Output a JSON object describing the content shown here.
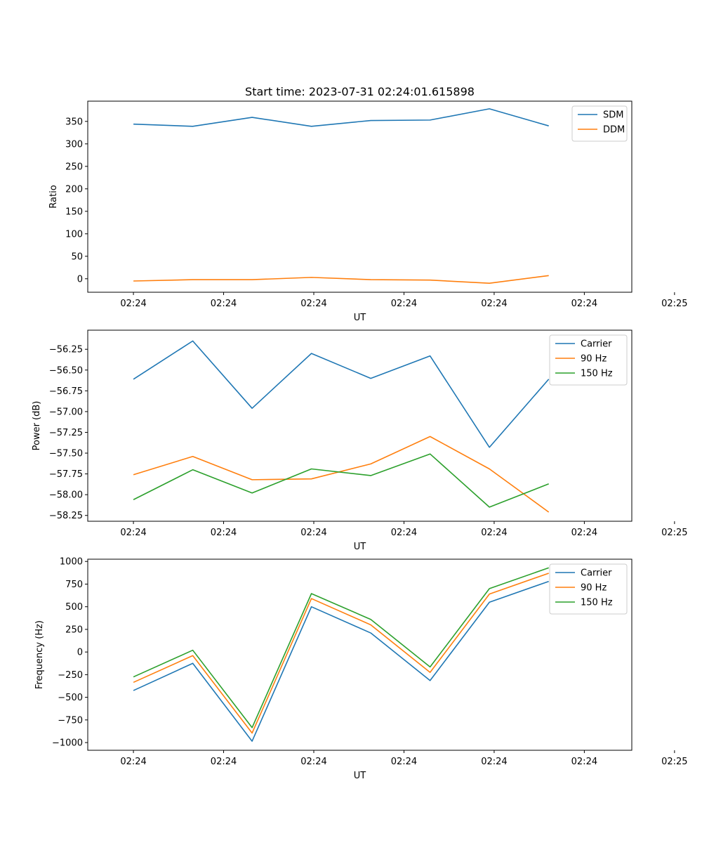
{
  "figure": {
    "suptitle": "Start time: 2023-07-31 02:24:01.615898"
  },
  "chart_data": [
    {
      "type": "line",
      "xlabel": "UT",
      "ylabel": "Ratio",
      "xlim": [
        -0.77,
        8.4
      ],
      "ylim": [
        -30,
        395
      ],
      "xticks": [
        {
          "value": 0,
          "label": "02:24"
        },
        {
          "value": 1.52,
          "label": "02:24"
        },
        {
          "value": 3.04,
          "label": "02:24"
        },
        {
          "value": 4.56,
          "label": "02:24"
        },
        {
          "value": 6.08,
          "label": "02:24"
        },
        {
          "value": 7.6,
          "label": "02:24"
        },
        {
          "value": 9.12,
          "label": "02:25"
        }
      ],
      "yticks": [
        0,
        50,
        100,
        150,
        200,
        250,
        300,
        350
      ],
      "legend_position": "top-right",
      "x": [
        0,
        1,
        2,
        3,
        4,
        5,
        6,
        7
      ],
      "series": [
        {
          "name": "SDM",
          "color": "#1f77b4",
          "values": [
            344,
            339,
            359,
            339,
            352,
            353,
            378,
            340
          ]
        },
        {
          "name": "DDM",
          "color": "#ff7f0e",
          "values": [
            -5,
            -2,
            -2,
            3,
            -2,
            -3,
            -10,
            7
          ]
        }
      ]
    },
    {
      "type": "line",
      "xlabel": "UT",
      "ylabel": "Power (dB)",
      "xlim": [
        -0.77,
        8.4
      ],
      "ylim": [
        -58.32,
        -56.02
      ],
      "xticks": [
        {
          "value": 0,
          "label": "02:24"
        },
        {
          "value": 1.52,
          "label": "02:24"
        },
        {
          "value": 3.04,
          "label": "02:24"
        },
        {
          "value": 4.56,
          "label": "02:24"
        },
        {
          "value": 6.08,
          "label": "02:24"
        },
        {
          "value": 7.6,
          "label": "02:24"
        },
        {
          "value": 9.12,
          "label": "02:25"
        }
      ],
      "yticks": [
        -58.25,
        -58.0,
        -57.75,
        -57.5,
        -57.25,
        -57.0,
        -56.75,
        -56.5,
        -56.25
      ],
      "legend_position": "top-right",
      "x": [
        0,
        1,
        2,
        3,
        4,
        5,
        6,
        7
      ],
      "series": [
        {
          "name": "Carrier",
          "color": "#1f77b4",
          "values": [
            -56.61,
            -56.15,
            -56.96,
            -56.3,
            -56.6,
            -56.33,
            -57.43,
            -56.61
          ]
        },
        {
          "name": "90 Hz",
          "color": "#ff7f0e",
          "values": [
            -57.76,
            -57.54,
            -57.82,
            -57.81,
            -57.63,
            -57.3,
            -57.69,
            -58.21
          ]
        },
        {
          "name": "150 Hz",
          "color": "#2ca02c",
          "values": [
            -58.06,
            -57.7,
            -57.98,
            -57.69,
            -57.77,
            -57.51,
            -58.15,
            -57.87
          ]
        }
      ]
    },
    {
      "type": "line",
      "xlabel": "UT",
      "ylabel": "Frequency (Hz)",
      "xlim": [
        -0.77,
        8.4
      ],
      "ylim": [
        -1085,
        1025
      ],
      "xticks": [
        {
          "value": 0,
          "label": "02:24"
        },
        {
          "value": 1.52,
          "label": "02:24"
        },
        {
          "value": 3.04,
          "label": "02:24"
        },
        {
          "value": 4.56,
          "label": "02:24"
        },
        {
          "value": 6.08,
          "label": "02:24"
        },
        {
          "value": 7.6,
          "label": "02:24"
        },
        {
          "value": 9.12,
          "label": "02:25"
        }
      ],
      "yticks": [
        -1000,
        -750,
        -500,
        -250,
        0,
        250,
        500,
        750,
        1000
      ],
      "legend_position": "top-right",
      "x": [
        0,
        1,
        2,
        3,
        4,
        5,
        6,
        7
      ],
      "series": [
        {
          "name": "Carrier",
          "color": "#1f77b4",
          "values": [
            -425,
            -125,
            -985,
            500,
            210,
            -315,
            550,
            780
          ]
        },
        {
          "name": "90 Hz",
          "color": "#ff7f0e",
          "values": [
            -335,
            -40,
            -895,
            590,
            300,
            -225,
            640,
            870
          ]
        },
        {
          "name": "150 Hz",
          "color": "#2ca02c",
          "values": [
            -275,
            20,
            -835,
            645,
            360,
            -165,
            700,
            930
          ]
        }
      ]
    }
  ]
}
